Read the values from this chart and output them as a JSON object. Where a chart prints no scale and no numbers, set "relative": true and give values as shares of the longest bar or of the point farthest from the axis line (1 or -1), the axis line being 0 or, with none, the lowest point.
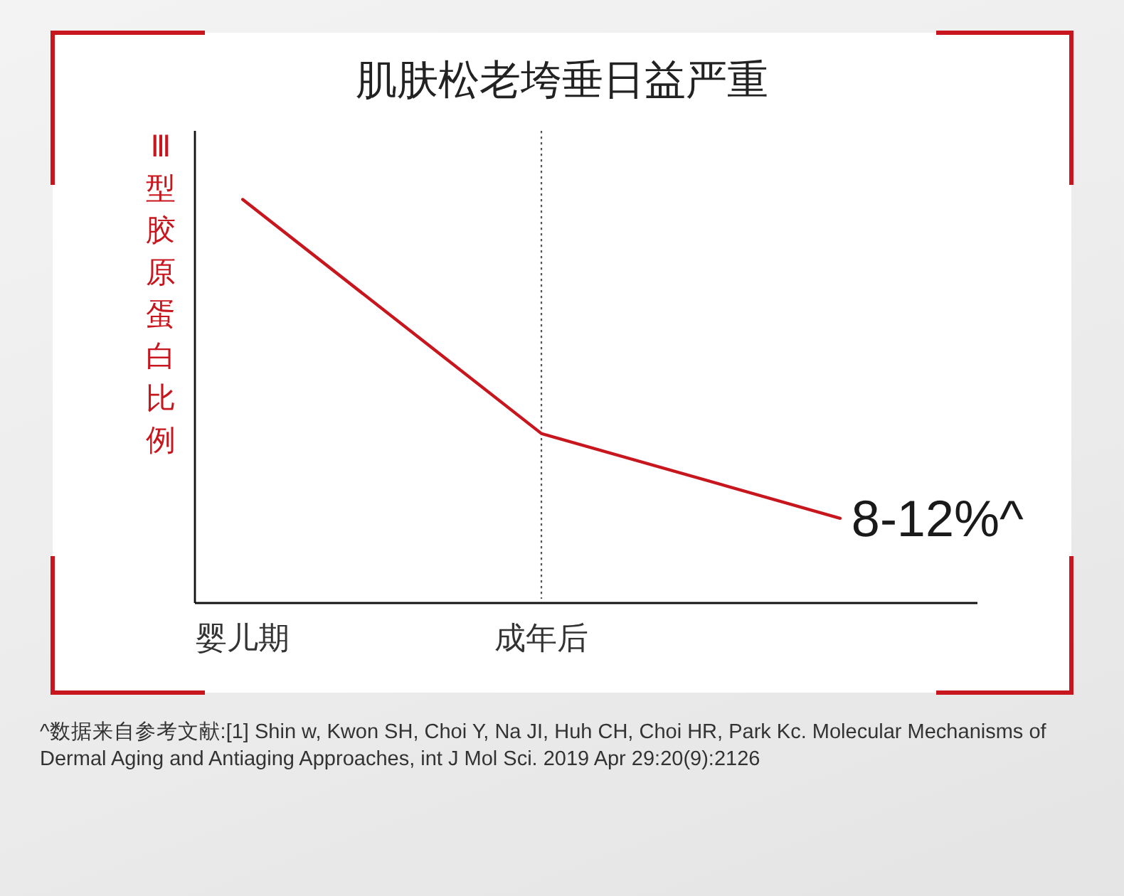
{
  "chart_data": {
    "type": "line",
    "title": "肌肤松老垮垂日益严重",
    "ylabel": "Ⅲ型胶原蛋白比例",
    "categories": [
      "婴儿期",
      "成年后",
      null
    ],
    "values": [
      1,
      0.42,
      0.21
    ],
    "color": "#c8161e",
    "relative": true,
    "ref_lines": [
      {
        "axis": "x",
        "value": "成年后",
        "color": "#555555",
        "line_style": "dotted"
      }
    ],
    "annotations": [
      "8-12%^",
      "^数据来自参考文献:[1] Shin w, Kwon SH, Choi Y, Na JI, Huh CH, Choi HR, Park Kc. Molecular Mechanisms of Dermal Aging and Antiaging Approaches, int J Mol Sci. 2019 Apr 29:20(9):2126"
    ]
  }
}
